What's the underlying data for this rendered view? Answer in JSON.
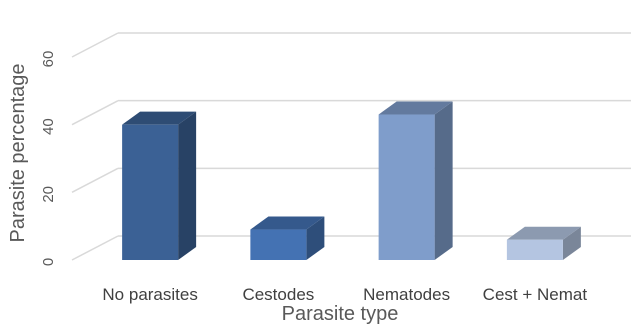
{
  "chart_data": {
    "type": "bar",
    "style": "3d-column",
    "categories": [
      "No parasites",
      "Cestodes",
      "Nematodes",
      "Cest + Nemat"
    ],
    "values": [
      40,
      9,
      43,
      6
    ],
    "colors": [
      "#3B6195",
      "#4472B3",
      "#7F9DCB",
      "#B4C5E1"
    ],
    "xlabel": "Parasite type",
    "ylabel": "Parasite percentage",
    "ylim": [
      0,
      60
    ],
    "yticks": [
      0,
      20,
      40,
      60
    ],
    "grid": true,
    "legend": "none"
  }
}
